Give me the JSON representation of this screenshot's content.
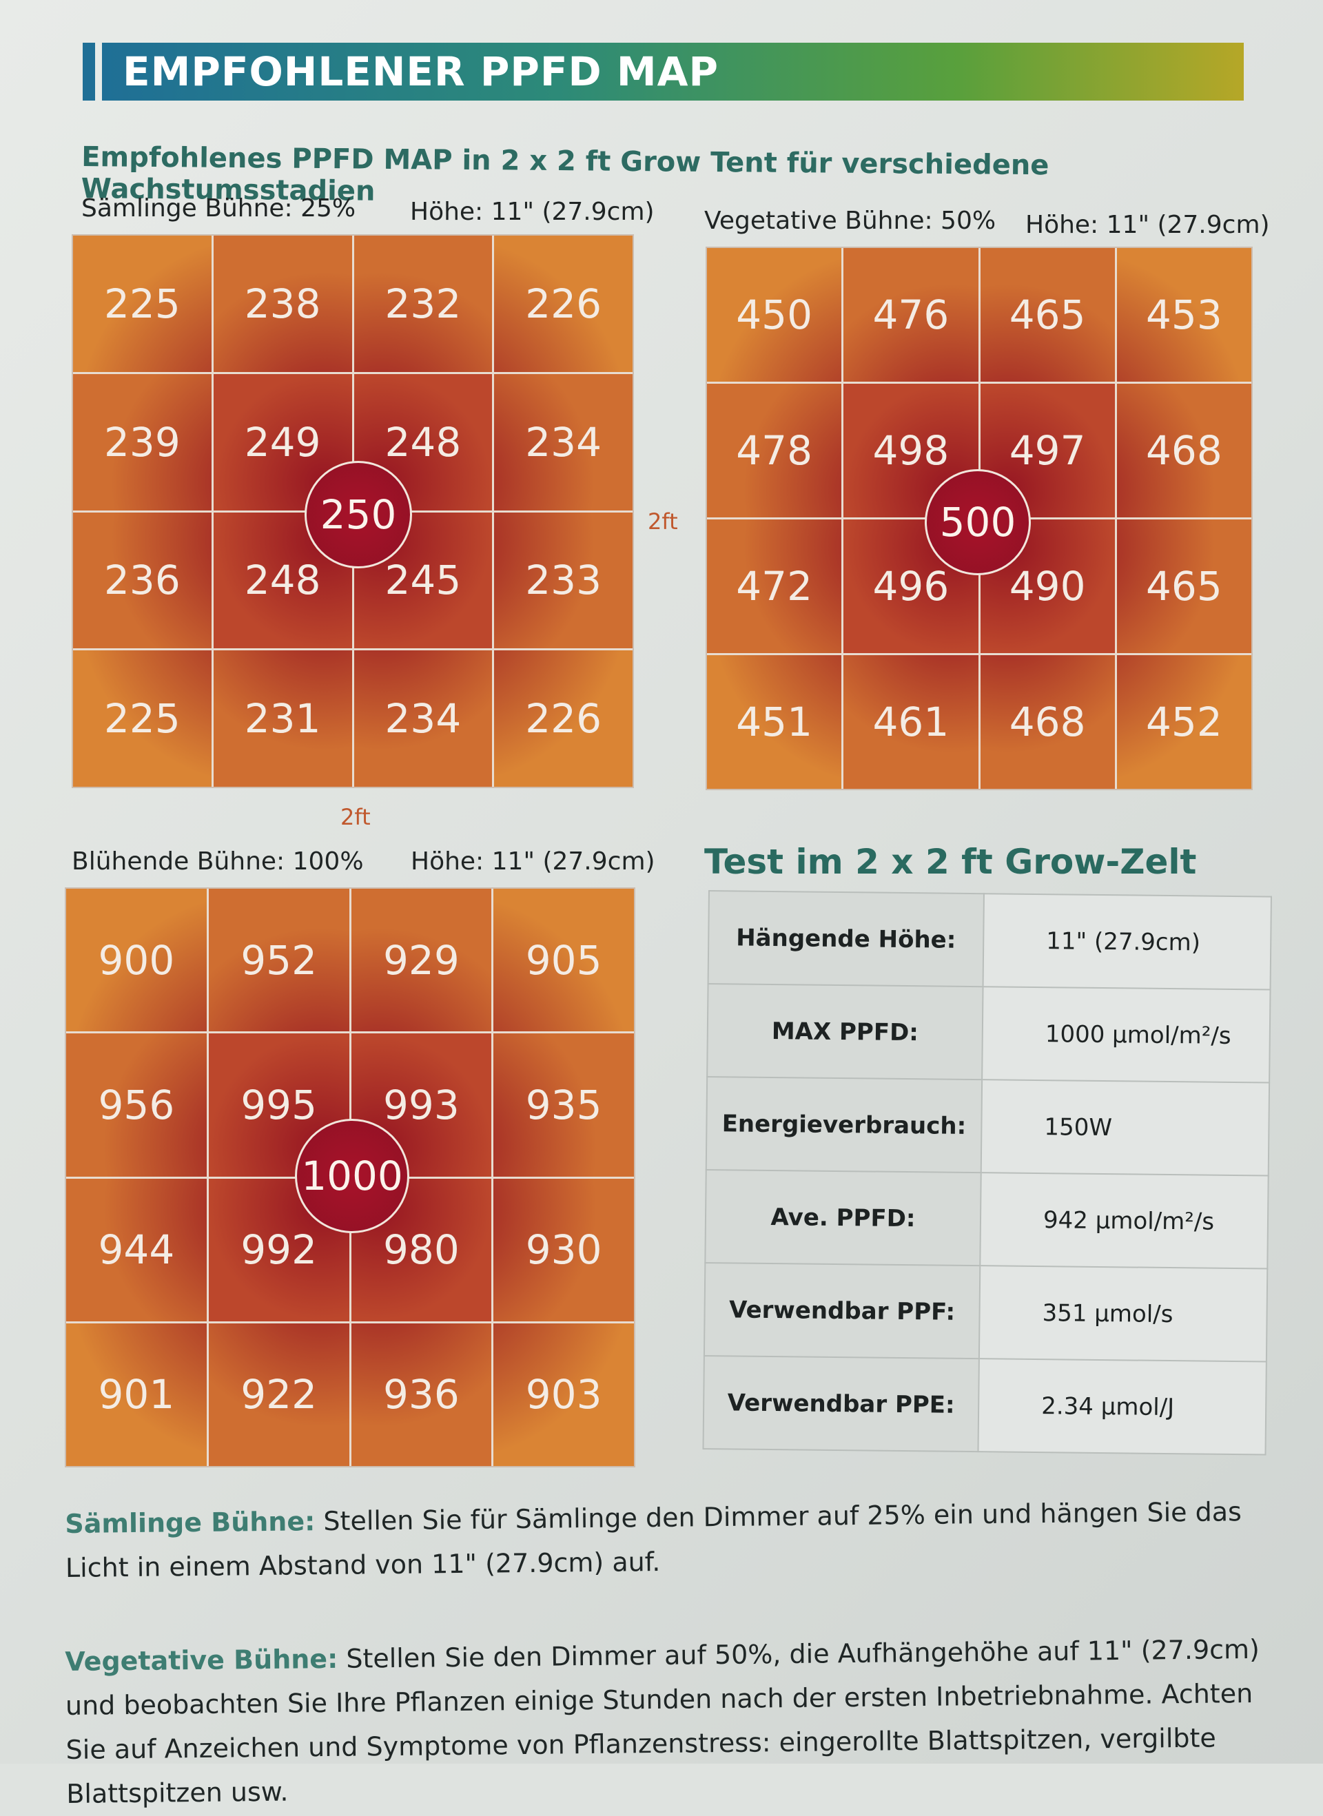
{
  "header": {
    "title": "EMPFOHLENER PPFD MAP"
  },
  "subtitle": "Empfohlenes PPFD MAP in 2 x 2 ft Grow Tent für verschiedene Wachstumsstadien",
  "maps": [
    {
      "stage": "Sämlinge Bühne: 25%",
      "height": "Höhe: 11\" (27.9cm)",
      "center": "250",
      "rows": [
        [
          "225",
          "238",
          "232",
          "226"
        ],
        [
          "239",
          "249",
          "248",
          "234"
        ],
        [
          "236",
          "248",
          "245",
          "233"
        ],
        [
          "225",
          "231",
          "234",
          "226"
        ]
      ]
    },
    {
      "stage": "Vegetative Bühne: 50%",
      "height": "Höhe: 11\" (27.9cm)",
      "center": "500",
      "rows": [
        [
          "450",
          "476",
          "465",
          "453"
        ],
        [
          "478",
          "498",
          "497",
          "468"
        ],
        [
          "472",
          "496",
          "490",
          "465"
        ],
        [
          "451",
          "461",
          "468",
          "452"
        ]
      ]
    },
    {
      "stage": "Blühende Bühne: 100%",
      "height": "Höhe: 11\" (27.9cm)",
      "center": "1000",
      "rows": [
        [
          "900",
          "952",
          "929",
          "905"
        ],
        [
          "956",
          "995",
          "993",
          "935"
        ],
        [
          "944",
          "992",
          "980",
          "930"
        ],
        [
          "901",
          "922",
          "936",
          "903"
        ]
      ]
    }
  ],
  "dimensions": {
    "width": "2ft",
    "depth": "2ft"
  },
  "test": {
    "title": "Test im 2 x 2 ft Grow-Zelt",
    "rows": [
      {
        "label": "Hängende Höhe:",
        "value": "11\" (27.9cm)"
      },
      {
        "label": "MAX PPFD:",
        "value": "1000 μmol/m²/s"
      },
      {
        "label": "Energieverbrauch:",
        "value": "150W"
      },
      {
        "label": "Ave. PPFD:",
        "value": "942 μmol/m²/s"
      },
      {
        "label": "Verwendbar PPF:",
        "value": "351 μmol/s"
      },
      {
        "label": "Verwendbar PPE:",
        "value": "2.34 μmol/J"
      }
    ]
  },
  "paragraphs": [
    {
      "lead": "Sämlinge Bühne:",
      "text": " Stellen Sie für Sämlinge den Dimmer auf 25% ein und hängen Sie das Licht in einem Abstand von 11\" (27.9cm) auf."
    },
    {
      "lead": "Vegetative Bühne:",
      "text": " Stellen Sie den Dimmer auf 50%, die Aufhängehöhe auf 11\" (27.9cm) und beobachten Sie Ihre Pflanzen einige Stunden nach der ersten Inbetriebnahme. Achten Sie auf Anzeichen und Symptome von Pflanzenstress: eingerollte Blattspitzen, vergilbte Blattspitzen usw."
    }
  ],
  "colors": {
    "hot": "#a8122a",
    "warm": "#b9421e",
    "cool": "#d9832f"
  }
}
